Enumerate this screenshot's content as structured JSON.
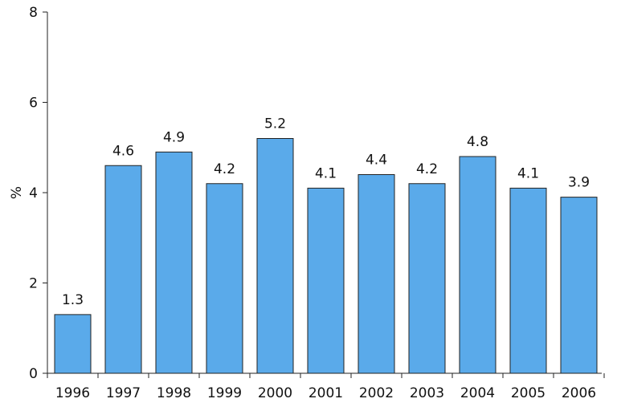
{
  "chart_data": {
    "type": "bar",
    "title": "",
    "xlabel": "",
    "ylabel": "%",
    "categories": [
      "1996",
      "1997",
      "1998",
      "1999",
      "2000",
      "2001",
      "2002",
      "2003",
      "2004",
      "2005",
      "2006"
    ],
    "values": [
      1.3,
      4.6,
      4.9,
      4.2,
      5.2,
      4.1,
      4.4,
      4.2,
      4.8,
      4.1,
      3.9
    ],
    "data_labels": [
      "1.3",
      "4.6",
      "4.9",
      "4.2",
      "5.2",
      "4.1",
      "4.4",
      "4.2",
      "4.8",
      "4.1",
      "3.9"
    ],
    "ylim": [
      0,
      8
    ],
    "yticks": [
      0,
      2,
      4,
      6,
      8
    ],
    "grid": false,
    "legend": "none",
    "colors": {
      "bar": "#5aaaea",
      "bar_edge": "#222222",
      "axis": "#222222",
      "text": "#111111"
    }
  }
}
